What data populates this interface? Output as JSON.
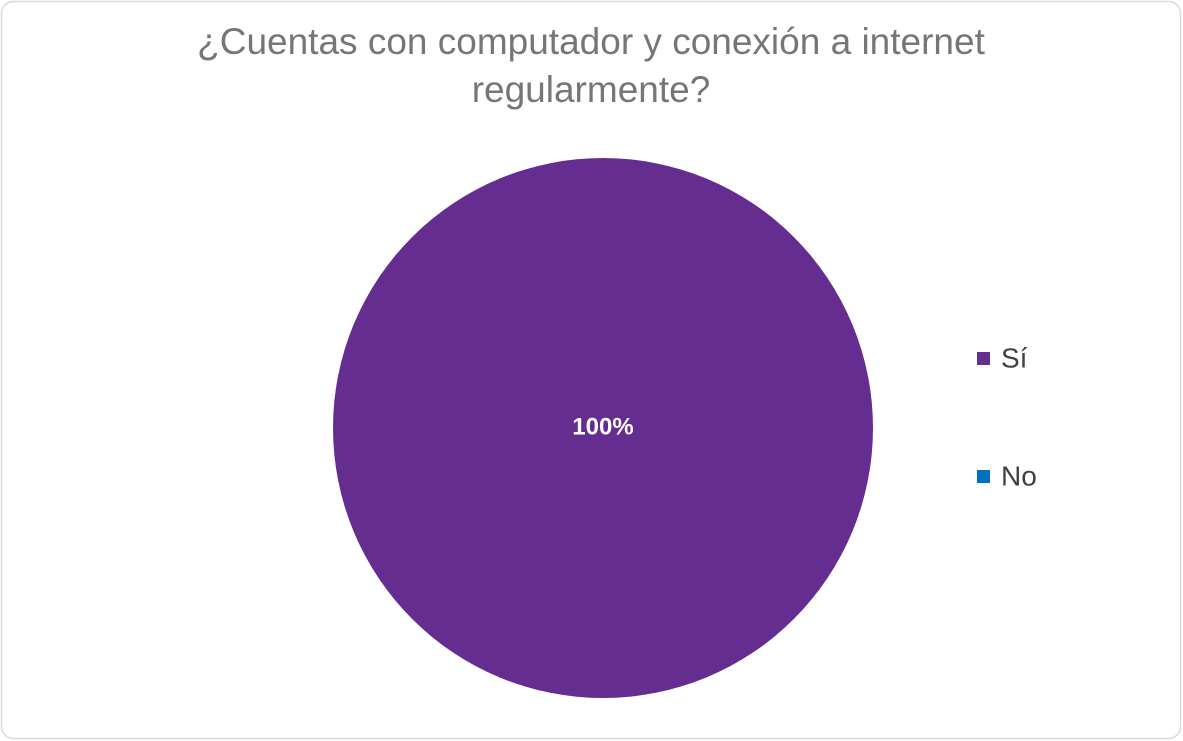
{
  "chart_data": {
    "type": "pie",
    "title": "¿Cuentas con computador y conexión a internet regularmente?",
    "categories": [
      "Sí",
      "No"
    ],
    "values": [
      100,
      0
    ],
    "value_labels": [
      "100%",
      null
    ],
    "colors": [
      "#662d91",
      "#0070c0"
    ],
    "legend": "right"
  }
}
